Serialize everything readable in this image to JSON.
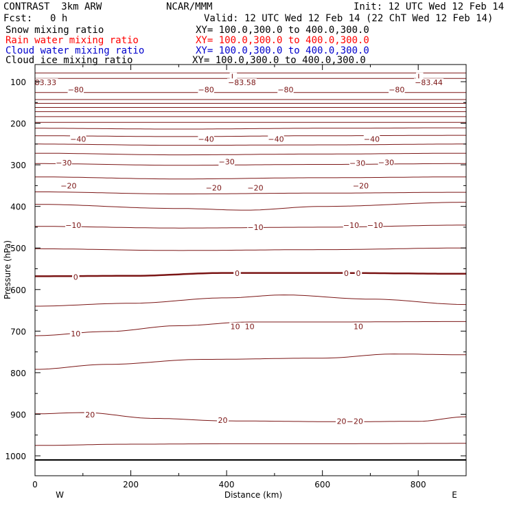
{
  "header": {
    "title": "CONTRAST  3km ARW",
    "org": "NCAR/MMM",
    "init": "Init: 12 UTC Wed 12 Feb 14",
    "fcst_label": "Fcst:",
    "fcst_value": "0 h",
    "valid": "Valid: 12 UTC Wed 12 Feb 14 (22 ChT Wed 12 Feb 14)"
  },
  "fields": [
    {
      "name": "Snow mixing ratio",
      "xy": "XY= 100.0,300.0 to 400.0,300.0",
      "color": "#000000"
    },
    {
      "name": "Rain water mixing ratio",
      "xy": "XY= 100.0,300.0 to 400.0,300.0",
      "color": "#ff0000"
    },
    {
      "name": "Cloud water mixing ratio",
      "xy": "XY= 100.0,300.0 to 400.0,300.0",
      "color": "#0000cc"
    },
    {
      "name": "Cloud ice mixing ratio",
      "xy": "XY= 100.0,300.0 to 400.0,300.0",
      "color": "#000000"
    }
  ],
  "chart_data": {
    "type": "line",
    "xlabel": "Distance (km)",
    "ylabel": "Pressure (hPa)",
    "xlim": [
      0,
      900
    ],
    "ylim": [
      1050,
      70
    ],
    "xticks": [
      0,
      200,
      400,
      600,
      800
    ],
    "yticks": [
      100,
      200,
      300,
      400,
      500,
      600,
      700,
      800,
      900,
      1000
    ],
    "x_end_labels": {
      "left": "W",
      "right": "E"
    },
    "contour_color": "#7a1414",
    "surface_pressure": 1010,
    "contours": [
      {
        "x": [
          0,
          900
        ],
        "p": [
          79,
          79
        ],
        "width": 1
      },
      {
        "x": [
          0,
          900
        ],
        "p": [
          92,
          92
        ],
        "width": 1
      },
      {
        "x": [
          0,
          900
        ],
        "p": [
          126,
          126
        ],
        "width": 1
      },
      {
        "x": [
          0,
          900
        ],
        "p": [
          143,
          143
        ],
        "width": 1
      },
      {
        "x": [
          0,
          900
        ],
        "p": [
          152,
          152
        ],
        "width": 1
      },
      {
        "x": [
          0,
          900
        ],
        "p": [
          162,
          162
        ],
        "width": 1
      },
      {
        "x": [
          0,
          900
        ],
        "p": [
          172,
          172
        ],
        "width": 1
      },
      {
        "x": [
          0,
          900
        ],
        "p": [
          184,
          184
        ],
        "width": 1
      },
      {
        "x": [
          0,
          900
        ],
        "p": [
          198,
          198
        ],
        "width": 1
      },
      {
        "x": [
          0,
          300,
          600,
          900
        ],
        "p": [
          212,
          214,
          212,
          211
        ],
        "width": 1
      },
      {
        "x": [
          0,
          300,
          600,
          900
        ],
        "p": [
          230,
          232,
          230,
          229
        ],
        "width": 1
      },
      {
        "x": [
          0,
          300,
          600,
          900
        ],
        "p": [
          250,
          253,
          252,
          250
        ],
        "width": 1
      },
      {
        "x": [
          0,
          300,
          600,
          900
        ],
        "p": [
          272,
          276,
          274,
          272
        ],
        "width": 1
      },
      {
        "x": [
          0,
          300,
          600,
          900
        ],
        "p": [
          297,
          301,
          299,
          297
        ],
        "width": 1
      },
      {
        "x": [
          0,
          300,
          600,
          900
        ],
        "p": [
          329,
          334,
          331,
          329
        ],
        "width": 1
      },
      {
        "x": [
          0,
          300,
          600,
          900
        ],
        "p": [
          365,
          370,
          368,
          366
        ],
        "width": 1
      },
      {
        "x": [
          0,
          300,
          440,
          600,
          900
        ],
        "p": [
          395,
          405,
          409,
          400,
          390
        ],
        "width": 1
      },
      {
        "x": [
          0,
          300,
          600,
          900
        ],
        "p": [
          448,
          452,
          450,
          445
        ],
        "width": 1
      },
      {
        "x": [
          0,
          300,
          600,
          900
        ],
        "p": [
          502,
          506,
          504,
          500
        ],
        "width": 1
      },
      {
        "x": [
          0,
          200,
          400,
          600,
          900
        ],
        "p": [
          568,
          567,
          560,
          560,
          562
        ],
        "width": 2.5
      },
      {
        "x": [
          0,
          200,
          400,
          520,
          700,
          900
        ],
        "p": [
          640,
          633,
          620,
          613,
          623,
          636
        ],
        "width": 1
      },
      {
        "x": [
          0,
          150,
          300,
          450,
          600,
          900
        ],
        "p": [
          711,
          701,
          687,
          678,
          678,
          677
        ],
        "width": 1
      },
      {
        "x": [
          0,
          150,
          350,
          600,
          750,
          900
        ],
        "p": [
          792,
          780,
          768,
          765,
          755,
          757
        ],
        "width": 1
      },
      {
        "x": [
          0,
          100,
          250,
          400,
          650,
          800,
          900
        ],
        "p": [
          899,
          896,
          910,
          916,
          918,
          917,
          906
        ],
        "width": 1
      },
      {
        "x": [
          0,
          200,
          400,
          600,
          900
        ],
        "p": [
          975,
          972,
          971,
          971,
          970
        ],
        "width": 1
      }
    ],
    "contour_labels": [
      {
        "text": "83.33",
        "x": 22,
        "p": 102
      },
      {
        "text": "L",
        "x": 414,
        "p": 88
      },
      {
        "text": "L",
        "x": 803,
        "p": 88
      },
      {
        "text": "−83.58",
        "x": 432,
        "p": 102
      },
      {
        "text": "−83.44",
        "x": 822,
        "p": 102
      },
      {
        "text": "−80",
        "x": 85,
        "p": 119
      },
      {
        "text": "−80",
        "x": 357,
        "p": 119
      },
      {
        "text": "−80",
        "x": 523,
        "p": 119
      },
      {
        "text": "−80",
        "x": 755,
        "p": 119
      },
      {
        "text": "−40",
        "x": 90,
        "p": 238
      },
      {
        "text": "−40",
        "x": 357,
        "p": 238
      },
      {
        "text": "−40",
        "x": 503,
        "p": 238
      },
      {
        "text": "−40",
        "x": 703,
        "p": 238
      },
      {
        "text": "−30",
        "x": 60,
        "p": 295
      },
      {
        "text": "−30",
        "x": 400,
        "p": 292
      },
      {
        "text": "−30",
        "x": 673,
        "p": 296
      },
      {
        "text": "−30",
        "x": 733,
        "p": 294
      },
      {
        "text": "−20",
        "x": 70,
        "p": 350
      },
      {
        "text": "−20",
        "x": 373,
        "p": 355
      },
      {
        "text": "−20",
        "x": 460,
        "p": 355
      },
      {
        "text": "−20",
        "x": 680,
        "p": 350
      },
      {
        "text": "−10",
        "x": 80,
        "p": 445
      },
      {
        "text": "−10",
        "x": 460,
        "p": 450
      },
      {
        "text": "−10",
        "x": 660,
        "p": 445
      },
      {
        "text": "−10",
        "x": 710,
        "p": 445
      },
      {
        "text": "0",
        "x": 85,
        "p": 570
      },
      {
        "text": "0",
        "x": 422,
        "p": 561
      },
      {
        "text": "0",
        "x": 650,
        "p": 561
      },
      {
        "text": "0",
        "x": 675,
        "p": 561
      },
      {
        "text": "10",
        "x": 85,
        "p": 706
      },
      {
        "text": "10",
        "x": 418,
        "p": 689
      },
      {
        "text": "10",
        "x": 448,
        "p": 689
      },
      {
        "text": "10",
        "x": 675,
        "p": 689
      },
      {
        "text": "20",
        "x": 115,
        "p": 901
      },
      {
        "text": "20",
        "x": 392,
        "p": 914
      },
      {
        "text": "20",
        "x": 640,
        "p": 917
      },
      {
        "text": "20",
        "x": 675,
        "p": 917
      }
    ]
  }
}
